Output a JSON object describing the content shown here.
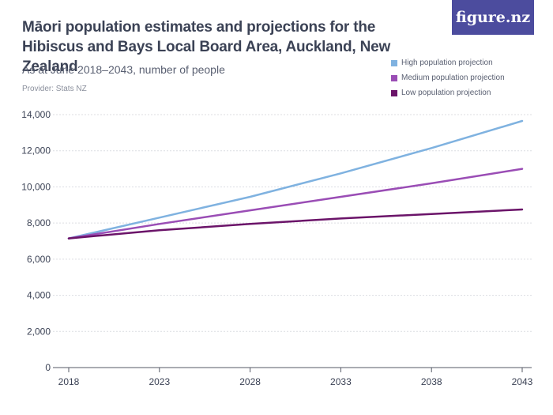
{
  "header": {
    "title": "Māori population estimates and projections for the Hibiscus and Bays Local Board Area, Auckland, New Zealand",
    "subtitle": "As at June 2018–2043, number of people",
    "provider": "Provider: Stats NZ",
    "logo_text": "figure.nz"
  },
  "colors": {
    "high": "#7fb2e0",
    "medium": "#9a4db5",
    "low": "#6b1469",
    "axis": "#555a66",
    "grid": "#dcdde2",
    "logo_bg": "#4c4c9e"
  },
  "chart_data": {
    "type": "line",
    "title": "Māori population estimates and projections for the Hibiscus and Bays Local Board Area, Auckland, New Zealand",
    "subtitle": "As at June 2018–2043, number of people",
    "xlabel": "",
    "ylabel": "",
    "x": [
      2018,
      2023,
      2028,
      2033,
      2038,
      2043
    ],
    "ylim": [
      0,
      14000
    ],
    "yticks": [
      0,
      2000,
      4000,
      6000,
      8000,
      10000,
      12000,
      14000
    ],
    "ytick_labels": [
      "0",
      "2,000",
      "4,000",
      "6,000",
      "8,000",
      "10,000",
      "12,000",
      "14,000"
    ],
    "xtick_labels": [
      "2018",
      "2023",
      "2028",
      "2033",
      "2038",
      "2043"
    ],
    "grid": true,
    "legend_position": "top-right",
    "series": [
      {
        "name": "High population projection",
        "color_key": "high",
        "values": [
          7150,
          8300,
          9450,
          10750,
          12150,
          13650
        ]
      },
      {
        "name": "Medium population projection",
        "color_key": "medium",
        "values": [
          7150,
          7950,
          8700,
          9450,
          10200,
          11000
        ]
      },
      {
        "name": "Low population projection",
        "color_key": "low",
        "values": [
          7150,
          7600,
          7950,
          8250,
          8500,
          8750
        ]
      }
    ]
  }
}
